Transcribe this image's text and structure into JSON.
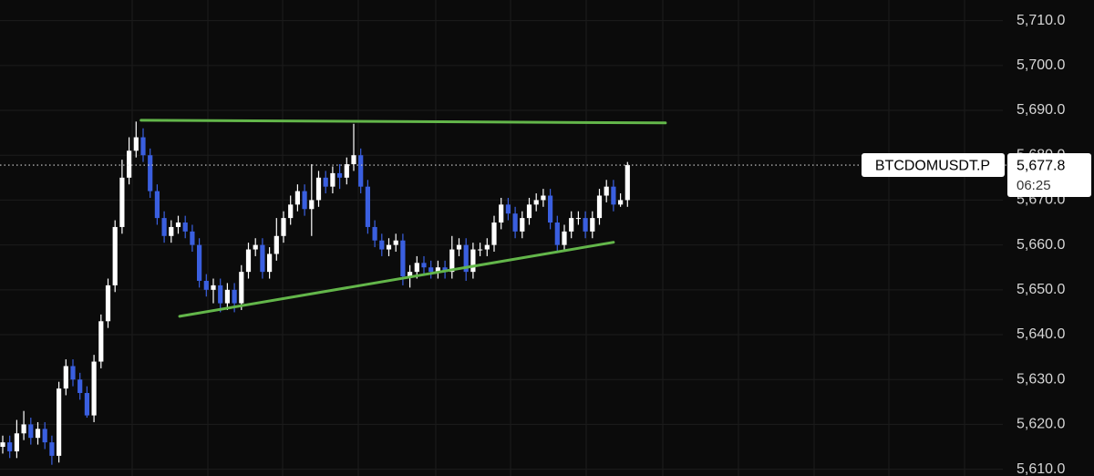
{
  "chart_data": {
    "type": "candlestick",
    "symbol": "BTCDOMUSDT.P",
    "countdown": "06:25",
    "last_price": {
      "value": 5677.8,
      "label": "5,677.8"
    },
    "up_color": "#ffffff",
    "down_color": "#3a5fe0",
    "ylim": [
      5608.5,
      5714.6
    ],
    "yticks": [
      {
        "value": 5610,
        "label": "5,610.0"
      },
      {
        "value": 5620,
        "label": "5,620.0"
      },
      {
        "value": 5630,
        "label": "5,630.0"
      },
      {
        "value": 5640,
        "label": "5,640.0"
      },
      {
        "value": 5650,
        "label": "5,650.0"
      },
      {
        "value": 5660,
        "label": "5,660.0"
      },
      {
        "value": 5670,
        "label": "5,670.0"
      },
      {
        "value": 5680,
        "label": "5,680.0"
      },
      {
        "value": 5690,
        "label": "5,690.0"
      },
      {
        "value": 5700,
        "label": "5,700.0"
      },
      {
        "value": 5710,
        "label": "5,710.0"
      }
    ],
    "grid": true,
    "open": [
      5615,
      5616,
      5614,
      5618,
      5620,
      5617,
      5619,
      5616,
      5613,
      5628,
      5633,
      5630,
      5627,
      5622,
      5634,
      5643,
      5651,
      5664,
      5675,
      5681,
      5684,
      5680,
      5672,
      5666,
      5662,
      5664,
      5665,
      5663,
      5660,
      5652,
      5650,
      5651,
      5647,
      5650,
      5647,
      5654,
      5659,
      5660,
      5654,
      5658,
      5662,
      5666,
      5669,
      5672,
      5668,
      5670,
      5675,
      5673,
      5676,
      5675,
      5678,
      5680,
      5673,
      5664,
      5661,
      5659,
      5660,
      5661,
      5653,
      5654,
      5656,
      5655,
      5654,
      5655,
      5654,
      5659,
      5660,
      5654,
      5659,
      5659,
      5660,
      5665,
      5669,
      5667,
      5663,
      5666,
      5669,
      5670,
      5671,
      5665,
      5660,
      5663,
      5666,
      5666,
      5663,
      5666,
      5671,
      5673,
      5669,
      5670
    ],
    "high": [
      5617.5,
      5617.5,
      5621,
      5623,
      5621.5,
      5620.5,
      5620.5,
      5617.5,
      5629.5,
      5634.5,
      5634.5,
      5631.5,
      5628.5,
      5635.5,
      5644.5,
      5652.5,
      5665.5,
      5679,
      5684,
      5687.5,
      5686,
      5681.5,
      5673.5,
      5667.5,
      5665.5,
      5666.5,
      5666.5,
      5664.5,
      5661.5,
      5653.5,
      5652.5,
      5652.5,
      5651.5,
      5651.5,
      5655.5,
      5660.5,
      5661.5,
      5661.5,
      5659.5,
      5666,
      5667.5,
      5671,
      5673.5,
      5673.5,
      5678,
      5676.5,
      5676.5,
      5677.5,
      5678,
      5679.5,
      5687,
      5681.5,
      5674.5,
      5665.5,
      5662.5,
      5661.5,
      5662.5,
      5662.5,
      5655.5,
      5657.5,
      5657.5,
      5656.5,
      5656.5,
      5656.5,
      5662,
      5661.5,
      5661.5,
      5660.5,
      5660.5,
      5661.5,
      5666.5,
      5670.5,
      5670.5,
      5668.5,
      5667.5,
      5670.5,
      5671.5,
      5672.5,
      5672.5,
      5666.5,
      5664.5,
      5667.5,
      5667.5,
      5667.5,
      5667.5,
      5672.5,
      5674.5,
      5674.5,
      5671.5,
      5678.5
    ],
    "low": [
      5613.5,
      5612.5,
      5612.5,
      5616.5,
      5615.5,
      5615.5,
      5614.5,
      5611,
      5611.5,
      5626.5,
      5628.5,
      5625.5,
      5621.5,
      5620.5,
      5632.5,
      5641.5,
      5649.5,
      5662.5,
      5673.5,
      5679.5,
      5678.5,
      5670.5,
      5664.5,
      5660.5,
      5660.5,
      5662.5,
      5661.5,
      5658.5,
      5650.5,
      5648.5,
      5647,
      5645,
      5645.5,
      5645,
      5645.5,
      5652.5,
      5657.5,
      5652.5,
      5652.5,
      5656.5,
      5660.5,
      5664.5,
      5667.5,
      5666.5,
      5662,
      5668.5,
      5671.5,
      5671.5,
      5672.5,
      5673.5,
      5676.5,
      5671.5,
      5662.5,
      5659.5,
      5657.5,
      5657.5,
      5658.5,
      5651,
      5650.5,
      5652.5,
      5653.5,
      5652.5,
      5652.5,
      5652.5,
      5652.5,
      5657.5,
      5652,
      5652.5,
      5657.5,
      5657.5,
      5658.5,
      5663.5,
      5665.5,
      5661.5,
      5661.5,
      5664.5,
      5667.5,
      5668.5,
      5663.5,
      5658.5,
      5658.5,
      5661.5,
      5664.5,
      5661.5,
      5661.5,
      5664.5,
      5669.5,
      5667.5,
      5668.5,
      5668.5
    ],
    "close": [
      5616,
      5614,
      5618,
      5620,
      5617,
      5619,
      5616,
      5613,
      5628,
      5633,
      5630,
      5627,
      5622,
      5634,
      5643,
      5651,
      5664,
      5675,
      5681,
      5684,
      5680,
      5672,
      5666,
      5662,
      5664,
      5665,
      5663,
      5660,
      5652,
      5650,
      5651,
      5647,
      5650,
      5647,
      5654,
      5659,
      5660,
      5654,
      5658,
      5662,
      5666,
      5669,
      5672,
      5668,
      5670,
      5675,
      5673,
      5676,
      5675,
      5678,
      5680,
      5673,
      5664,
      5661,
      5659,
      5660,
      5661,
      5653,
      5654,
      5656,
      5655,
      5654,
      5655,
      5654,
      5659,
      5660,
      5654,
      5659,
      5659,
      5660,
      5665,
      5669,
      5667,
      5663,
      5666,
      5669,
      5670,
      5671,
      5665,
      5660,
      5663,
      5666,
      5666,
      5663,
      5666,
      5671,
      5673,
      5669,
      5670,
      5677.8
    ],
    "trendlines": [
      {
        "color": "#63b64a",
        "x": [
          19.7,
          94.4
        ],
        "y": [
          5687.8,
          5687.2
        ]
      },
      {
        "color": "#63b64a",
        "x": [
          25.2,
          87.0
        ],
        "y": [
          5644.1,
          5660.6
        ]
      }
    ]
  }
}
